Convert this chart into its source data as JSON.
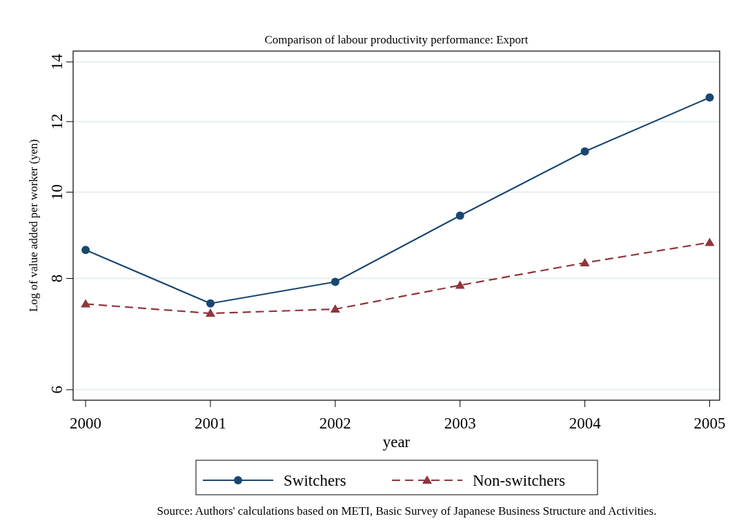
{
  "chart_data": {
    "type": "line",
    "title": "Comparison of labour productivity performance: Export",
    "xlabel": "year",
    "ylabel": "Log of value added per worker (yen)",
    "x": [
      2000,
      2001,
      2002,
      2003,
      2004,
      2005
    ],
    "xlim": [
      1999.9,
      2005.08
    ],
    "xticks": [
      2000,
      2001,
      2002,
      2003,
      2004,
      2005
    ],
    "ylim": [
      5.84,
      14.4
    ],
    "yticks": [
      6,
      8,
      10,
      12,
      14
    ],
    "log": "y",
    "grid": "y",
    "legend": "bottom",
    "series": [
      {
        "name": "Switchers",
        "color": "#1a476f",
        "values": [
          8.61,
          7.5,
          7.93,
          9.41,
          11.11,
          12.77
        ],
        "marker": "circle",
        "line_style": "solid"
      },
      {
        "name": "Non-switchers",
        "color": "#90353b",
        "values": [
          7.49,
          7.31,
          7.39,
          7.86,
          8.33,
          8.78
        ],
        "marker": "triangle",
        "line_style": "dashed"
      }
    ],
    "annotations": [
      "Source: Authors' calculations based on METI, Basic Survey of Japanese Business Structure and Activities."
    ]
  }
}
